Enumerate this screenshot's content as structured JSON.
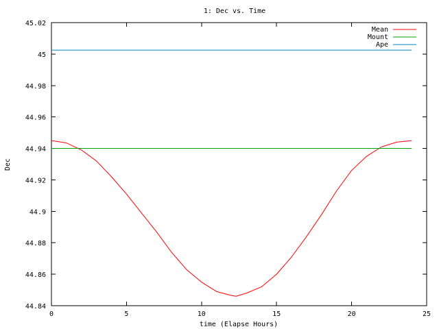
{
  "chart_data": {
    "type": "line",
    "title": "1: Dec vs. Time",
    "xlabel": "time (Elapse Hours)",
    "ylabel": "Dec",
    "xlim": [
      0,
      25
    ],
    "ylim": [
      44.84,
      45.02
    ],
    "x_ticks": [
      0,
      5,
      10,
      15,
      20,
      25
    ],
    "x_tick_labels": [
      "0",
      "5",
      "10",
      "15",
      "20",
      "25"
    ],
    "y_ticks": [
      44.84,
      44.86,
      44.88,
      44.9,
      44.92,
      44.94,
      44.96,
      44.98,
      45,
      45.02
    ],
    "y_tick_labels": [
      "44.84",
      "44.86",
      "44.88",
      "44.9",
      "44.92",
      "44.94",
      "44.96",
      "44.98",
      "45",
      "45.02"
    ],
    "grid": false,
    "legend_position": "top-right",
    "series": [
      {
        "name": "Mean",
        "color": "#ff0000",
        "x": [
          0,
          1,
          2,
          3,
          4,
          5,
          6,
          7,
          8,
          9,
          10,
          11,
          12,
          12.3,
          13,
          14,
          15,
          16,
          17,
          18,
          19,
          20,
          21,
          22,
          23,
          24
        ],
        "y": [
          44.945,
          44.9435,
          44.939,
          44.932,
          44.922,
          44.911,
          44.899,
          44.887,
          44.874,
          44.863,
          44.855,
          44.849,
          44.8465,
          44.846,
          44.848,
          44.852,
          44.86,
          44.871,
          44.884,
          44.898,
          44.913,
          44.926,
          44.935,
          44.941,
          44.944,
          44.945
        ]
      },
      {
        "name": "Mount",
        "color": "#00a000",
        "x": [
          0,
          24
        ],
        "y": [
          44.94,
          44.94
        ]
      },
      {
        "name": "Ape",
        "color": "#0080c0",
        "x": [
          0,
          24
        ],
        "y": [
          45.0025,
          45.0025
        ]
      }
    ]
  }
}
